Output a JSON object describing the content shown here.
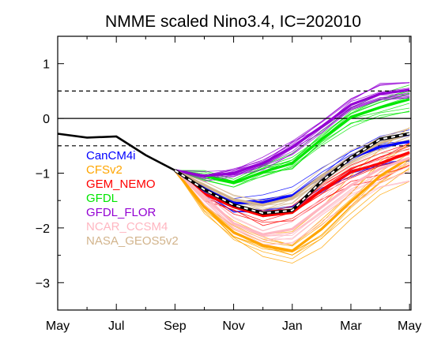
{
  "chart_data": {
    "type": "line",
    "title": "NMME scaled Nino3.4, IC=202010",
    "xlabel": "",
    "ylabel": "",
    "x_tick_labels": [
      "May",
      "Jul",
      "Sep",
      "Nov",
      "Jan",
      "Mar",
      "May"
    ],
    "x_tick_months": [
      0,
      2,
      4,
      6,
      8,
      10,
      12
    ],
    "y_ticks": [
      -3,
      -2,
      -1,
      0,
      1
    ],
    "y_tick_labels": [
      "−3",
      "−2",
      "−1",
      "0",
      "1"
    ],
    "xlim": [
      0,
      12.05
    ],
    "ylim": [
      -3.5,
      1.5
    ],
    "reference_lines": [
      {
        "y": 0,
        "style": "solid"
      },
      {
        "y": 0.5,
        "style": "dashed"
      },
      {
        "y": -0.5,
        "style": "dashed"
      }
    ],
    "observed": {
      "x": [
        0,
        1,
        2,
        3,
        4
      ],
      "values": [
        -0.28,
        -0.35,
        -0.33,
        -0.67,
        -0.95
      ]
    },
    "ensemble_mean": {
      "x": [
        4,
        5,
        6,
        7,
        8,
        9,
        10,
        11,
        12
      ],
      "values": [
        -0.95,
        -1.3,
        -1.58,
        -1.73,
        -1.68,
        -1.15,
        -0.72,
        -0.38,
        -0.28
      ]
    },
    "series": [
      {
        "name": "CanCM4i",
        "color": "#0000ff",
        "x": [
          4,
          5,
          6,
          7,
          8,
          9,
          10,
          11,
          12
        ],
        "values": [
          -0.95,
          -1.28,
          -1.55,
          -1.53,
          -1.42,
          -1.05,
          -0.72,
          -0.52,
          -0.42
        ],
        "spread": 0.35
      },
      {
        "name": "CFSv2",
        "color": "#ffa500",
        "x": [
          4,
          5,
          6,
          7,
          8,
          9,
          10,
          11,
          12
        ],
        "values": [
          -0.95,
          -1.62,
          -2.08,
          -2.32,
          -2.42,
          -2.02,
          -1.52,
          -1.05,
          -0.72
        ],
        "spread": 0.55
      },
      {
        "name": "GEM_NEMO",
        "color": "#ff0000",
        "x": [
          4,
          5,
          6,
          7,
          8,
          9,
          10,
          11,
          12
        ],
        "values": [
          -0.95,
          -1.38,
          -1.62,
          -1.78,
          -1.72,
          -1.32,
          -0.98,
          -0.82,
          -0.62
        ],
        "spread": 0.25
      },
      {
        "name": "GFDL",
        "color": "#00e600",
        "x": [
          4,
          5,
          6,
          7,
          8,
          9,
          10,
          11,
          12
        ],
        "values": [
          -0.95,
          -1.05,
          -1.18,
          -0.98,
          -0.82,
          -0.38,
          0.02,
          0.2,
          0.35
        ],
        "spread": 0.2
      },
      {
        "name": "GFDL_FLOR",
        "color": "#9400d3",
        "x": [
          4,
          5,
          6,
          7,
          8,
          9,
          10,
          11,
          12
        ],
        "values": [
          -0.95,
          -1.05,
          -1.0,
          -0.82,
          -0.52,
          -0.15,
          0.25,
          0.45,
          0.52
        ],
        "spread": 0.2
      },
      {
        "name": "NCAR_CCSM4",
        "color": "#ffb6c1",
        "x": [
          4,
          5,
          6,
          7,
          8,
          9,
          10,
          11,
          12
        ],
        "values": [
          -0.95,
          -1.42,
          -1.92,
          -2.12,
          -2.02,
          -1.62,
          -1.22,
          -0.92,
          -0.72
        ],
        "spread": 0.4
      },
      {
        "name": "NASA_GEOS5v2",
        "color": "#d2b48c",
        "x": [
          4,
          5,
          6,
          7,
          8,
          9,
          10,
          11,
          12
        ],
        "values": [
          -0.95,
          -1.22,
          -1.48,
          -1.58,
          -1.45,
          -1.05,
          -0.72,
          -0.45,
          -0.28
        ],
        "spread": 0.25
      }
    ],
    "legend_position": "upper-left",
    "grid": false
  }
}
